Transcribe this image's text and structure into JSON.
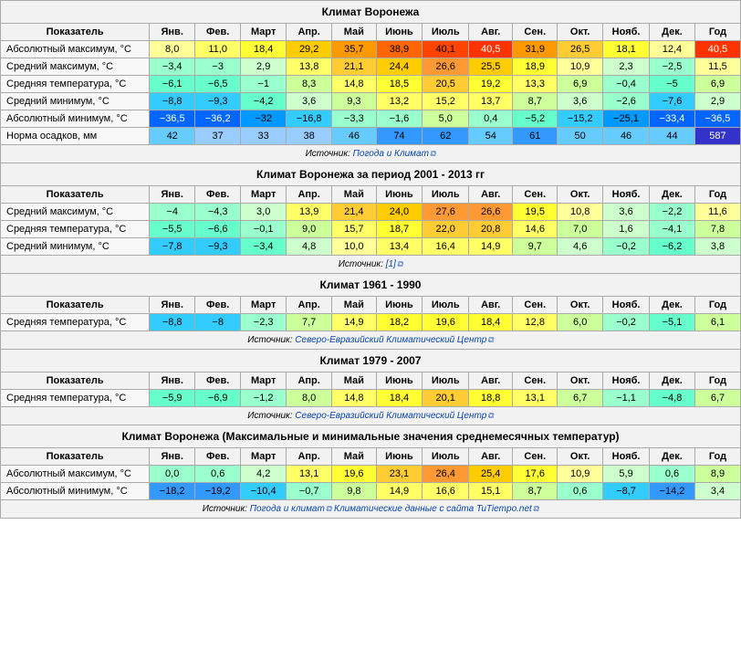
{
  "months": [
    "Янв.",
    "Фев.",
    "Март",
    "Апр.",
    "Май",
    "Июнь",
    "Июль",
    "Авг.",
    "Сен.",
    "Окт.",
    "Нояб.",
    "Дек."
  ],
  "header": {
    "indicator": "Показатель",
    "year": "Год"
  },
  "extlink_glyph": "⧉",
  "blocks": [
    {
      "title": "Климат Воронежа",
      "source_prefix": "Источник: ",
      "sources": [
        {
          "label": "Погода и Климат",
          "ext": true
        }
      ],
      "rows": [
        {
          "label": "Абсолютный максимум, °C",
          "vals": [
            "8,0",
            "11,0",
            "18,4",
            "29,2",
            "35,7",
            "38,9",
            "40,1",
            "40,5",
            "31,9",
            "26,5",
            "18,1",
            "12,4",
            "40,5"
          ],
          "colors": [
            "#ffff99",
            "#ffff66",
            "#ffff33",
            "#ffcc00",
            "#ff9900",
            "#ff6600",
            "#ff4400",
            "#ff3300",
            "#ff9900",
            "#ffcc33",
            "#ffff33",
            "#ffff99",
            "#ff3300"
          ]
        },
        {
          "label": "Средний максимум, °C",
          "vals": [
            "−3,4",
            "−3",
            "2,9",
            "13,8",
            "21,1",
            "24,4",
            "26,6",
            "25,5",
            "18,9",
            "10,9",
            "2,3",
            "−2,5",
            "11,5"
          ],
          "colors": [
            "#99ffcc",
            "#99ffcc",
            "#ccffcc",
            "#ffff66",
            "#ffcc33",
            "#ffcc00",
            "#ff9933",
            "#ffcc00",
            "#ffff33",
            "#ffff99",
            "#ccffcc",
            "#99ffcc",
            "#ffff99"
          ]
        },
        {
          "label": "Средняя температура, °C",
          "vals": [
            "−6,1",
            "−6,5",
            "−1",
            "8,3",
            "14,8",
            "18,5",
            "20,5",
            "19,2",
            "13,3",
            "6,9",
            "−0,4",
            "−5",
            "6,9"
          ],
          "colors": [
            "#66ffcc",
            "#66ffcc",
            "#99ffcc",
            "#ccff99",
            "#ffff66",
            "#ffff33",
            "#ffcc33",
            "#ffff33",
            "#ffff66",
            "#ccff99",
            "#99ffcc",
            "#66ffcc",
            "#ccff99"
          ]
        },
        {
          "label": "Средний минимум, °C",
          "vals": [
            "−8,8",
            "−9,3",
            "−4,2",
            "3,6",
            "9,3",
            "13,2",
            "15,2",
            "13,7",
            "8,7",
            "3,6",
            "−2,6",
            "−7,6",
            "2,9"
          ],
          "colors": [
            "#33ccff",
            "#33ccff",
            "#66ffcc",
            "#ccffcc",
            "#ccff99",
            "#ffff66",
            "#ffff66",
            "#ffff66",
            "#ccff99",
            "#ccffcc",
            "#99ffcc",
            "#33ccff",
            "#ccffcc"
          ]
        },
        {
          "label": "Абсолютный минимум, °C",
          "vals": [
            "−36,5",
            "−36,2",
            "−32",
            "−16,8",
            "−3,3",
            "−1,6",
            "5,0",
            "0,4",
            "−5,2",
            "−15,2",
            "−25,1",
            "−33,4",
            "−36,5"
          ],
          "colors": [
            "#0066ff",
            "#0066ff",
            "#0099ff",
            "#33ccff",
            "#99ffcc",
            "#99ffcc",
            "#ccff99",
            "#99ffcc",
            "#66ffcc",
            "#33ccff",
            "#0099ff",
            "#0066ff",
            "#0066ff"
          ]
        },
        {
          "label": "Норма осадков, мм",
          "vals": [
            "42",
            "37",
            "33",
            "38",
            "46",
            "74",
            "62",
            "54",
            "61",
            "50",
            "46",
            "44",
            "587"
          ],
          "colors": [
            "#66ccff",
            "#99ccff",
            "#99ccff",
            "#99ccff",
            "#66ccff",
            "#3399ff",
            "#3399ff",
            "#66ccff",
            "#3399ff",
            "#66ccff",
            "#66ccff",
            "#66ccff",
            "#3333cc"
          ]
        }
      ]
    },
    {
      "title": "Климат Воронежа за период 2001 - 2013 гг",
      "source_prefix": "Источник: ",
      "sources": [
        {
          "label": "[1]",
          "ext": true
        }
      ],
      "rows": [
        {
          "label": "Средний максимум, °C",
          "vals": [
            "−4",
            "−4,3",
            "3,0",
            "13,9",
            "21,4",
            "24,0",
            "27,6",
            "26,6",
            "19,5",
            "10,8",
            "3,6",
            "−2,2",
            "11,6"
          ],
          "colors": [
            "#99ffcc",
            "#99ffcc",
            "#ccffcc",
            "#ffff66",
            "#ffcc33",
            "#ffcc00",
            "#ff9933",
            "#ff9933",
            "#ffff33",
            "#ffff99",
            "#ccffcc",
            "#99ffcc",
            "#ffff99"
          ]
        },
        {
          "label": "Средняя температура, °C",
          "vals": [
            "−5,5",
            "−6,6",
            "−0,1",
            "9,0",
            "15,7",
            "18,7",
            "22,0",
            "20,8",
            "14,6",
            "7,0",
            "1,6",
            "−4,1",
            "7,8"
          ],
          "colors": [
            "#66ffcc",
            "#66ffcc",
            "#99ffcc",
            "#ccff99",
            "#ffff66",
            "#ffff33",
            "#ffcc33",
            "#ffcc33",
            "#ffff66",
            "#ccff99",
            "#ccffcc",
            "#99ffcc",
            "#ccff99"
          ]
        },
        {
          "label": "Средний минимум, °C",
          "vals": [
            "−7,8",
            "−9,3",
            "−3,4",
            "4,8",
            "10,0",
            "13,4",
            "16,4",
            "14,9",
            "9,7",
            "4,6",
            "−0,2",
            "−6,2",
            "3,8"
          ],
          "colors": [
            "#33ccff",
            "#33ccff",
            "#66ffcc",
            "#ccffcc",
            "#ffff99",
            "#ffff66",
            "#ffff66",
            "#ffff66",
            "#ccff99",
            "#ccffcc",
            "#99ffcc",
            "#66ffcc",
            "#ccffcc"
          ]
        }
      ]
    },
    {
      "title": "Климат 1961 - 1990",
      "source_prefix": "Источник: ",
      "sources": [
        {
          "label": "Северо-Евразийский Климатический Центр",
          "ext": true
        }
      ],
      "rows": [
        {
          "label": "Средняя температура, °C",
          "vals": [
            "−8,8",
            "−8",
            "−2,3",
            "7,7",
            "14,9",
            "18,2",
            "19,6",
            "18,4",
            "12,8",
            "6,0",
            "−0,2",
            "−5,1",
            "6,1"
          ],
          "colors": [
            "#33ccff",
            "#33ccff",
            "#99ffcc",
            "#ccff99",
            "#ffff66",
            "#ffff33",
            "#ffff33",
            "#ffff33",
            "#ffff66",
            "#ccff99",
            "#99ffcc",
            "#66ffcc",
            "#ccff99"
          ]
        }
      ]
    },
    {
      "title": "Климат 1979 - 2007",
      "source_prefix": "Источник: ",
      "sources": [
        {
          "label": "Северо-Евразийский Климатический Центр",
          "ext": true
        }
      ],
      "rows": [
        {
          "label": "Средняя температура, °C",
          "vals": [
            "−5,9",
            "−6,9",
            "−1,2",
            "8,0",
            "14,8",
            "18,4",
            "20,1",
            "18,8",
            "13,1",
            "6,7",
            "−1,1",
            "−4,8",
            "6,7"
          ],
          "colors": [
            "#66ffcc",
            "#66ffcc",
            "#99ffcc",
            "#ccff99",
            "#ffff66",
            "#ffff33",
            "#ffcc33",
            "#ffff33",
            "#ffff66",
            "#ccff99",
            "#99ffcc",
            "#66ffcc",
            "#ccff99"
          ]
        }
      ]
    },
    {
      "title": "Климат Воронежа (Максимальные и минимальные значения среднемесячных температур)",
      "source_prefix": "Источник: ",
      "sources": [
        {
          "label": "Погода и климат",
          "ext": true
        },
        {
          "label": "Климатические данные с сайта TuTiempo.net",
          "ext": true
        }
      ],
      "rows": [
        {
          "label": "Абсолютный максимум, °C",
          "vals": [
            "0,0",
            "0,6",
            "4,2",
            "13,1",
            "19,6",
            "23,1",
            "26,4",
            "25,4",
            "17,6",
            "10,9",
            "5,9",
            "0,6",
            "8,9"
          ],
          "colors": [
            "#99ffcc",
            "#99ffcc",
            "#ccffcc",
            "#ffff66",
            "#ffff33",
            "#ffcc33",
            "#ff9933",
            "#ffcc00",
            "#ffff33",
            "#ffff99",
            "#ccffcc",
            "#99ffcc",
            "#ccff99"
          ]
        },
        {
          "label": "Абсолютный минимум, °C",
          "vals": [
            "−18,2",
            "−19,2",
            "−10,4",
            "−0,7",
            "9,8",
            "14,9",
            "16,6",
            "15,1",
            "8,7",
            "0,6",
            "−8,7",
            "−14,2",
            "3,4"
          ],
          "colors": [
            "#3399ff",
            "#3399ff",
            "#33ccff",
            "#99ffcc",
            "#ccff99",
            "#ffff66",
            "#ffff66",
            "#ffff66",
            "#ccff99",
            "#99ffcc",
            "#33ccff",
            "#3399ff",
            "#ccffcc"
          ]
        }
      ]
    }
  ]
}
